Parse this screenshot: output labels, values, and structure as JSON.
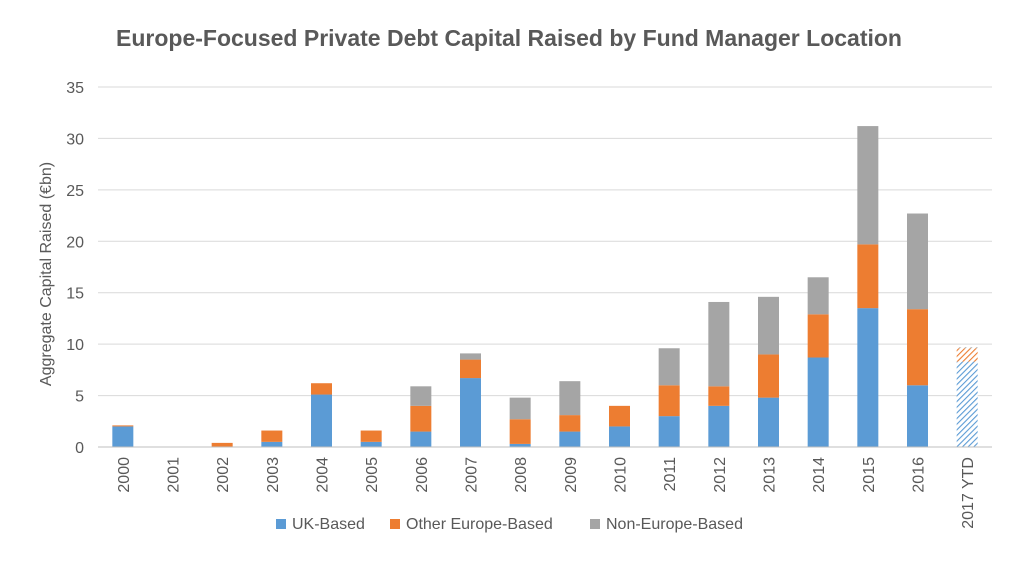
{
  "chart_data": {
    "type": "bar",
    "stacked": true,
    "title": "Europe-Focused Private Debt Capital Raised by Fund Manager Location",
    "xlabel": "",
    "ylabel": "Aggregate Capital Raised (€bn)",
    "ylim": [
      0,
      35
    ],
    "yticks": [
      0,
      5,
      10,
      15,
      20,
      25,
      30,
      35
    ],
    "grid": true,
    "legend_position": "bottom",
    "categories": [
      "2000",
      "2001",
      "2002",
      "2003",
      "2004",
      "2005",
      "2006",
      "2007",
      "2008",
      "2009",
      "2010",
      "2011",
      "2012",
      "2013",
      "2014",
      "2015",
      "2016",
      "2017 YTD"
    ],
    "series": [
      {
        "name": "UK-Based",
        "color": "#5B9BD5",
        "values": [
          2.0,
          0,
          0,
          0.5,
          5.1,
          0.5,
          1.5,
          6.7,
          0.3,
          1.5,
          2.0,
          3.0,
          4.0,
          4.8,
          8.7,
          13.5,
          6.0,
          8.3
        ]
      },
      {
        "name": "Other Europe-Based",
        "color": "#ED7D31",
        "values": [
          0.1,
          0,
          0.4,
          1.1,
          1.1,
          1.1,
          2.5,
          1.8,
          2.4,
          1.6,
          2.0,
          3.0,
          1.9,
          4.2,
          4.2,
          6.2,
          7.4,
          1.3
        ]
      },
      {
        "name": "Non-Europe-Based",
        "color": "#A5A5A5",
        "values": [
          0,
          0,
          0,
          0,
          0,
          0,
          1.9,
          0.6,
          2.1,
          3.3,
          0,
          3.6,
          8.2,
          5.6,
          3.6,
          11.5,
          9.3,
          0.1
        ]
      }
    ],
    "ytd_category": "2017 YTD"
  }
}
